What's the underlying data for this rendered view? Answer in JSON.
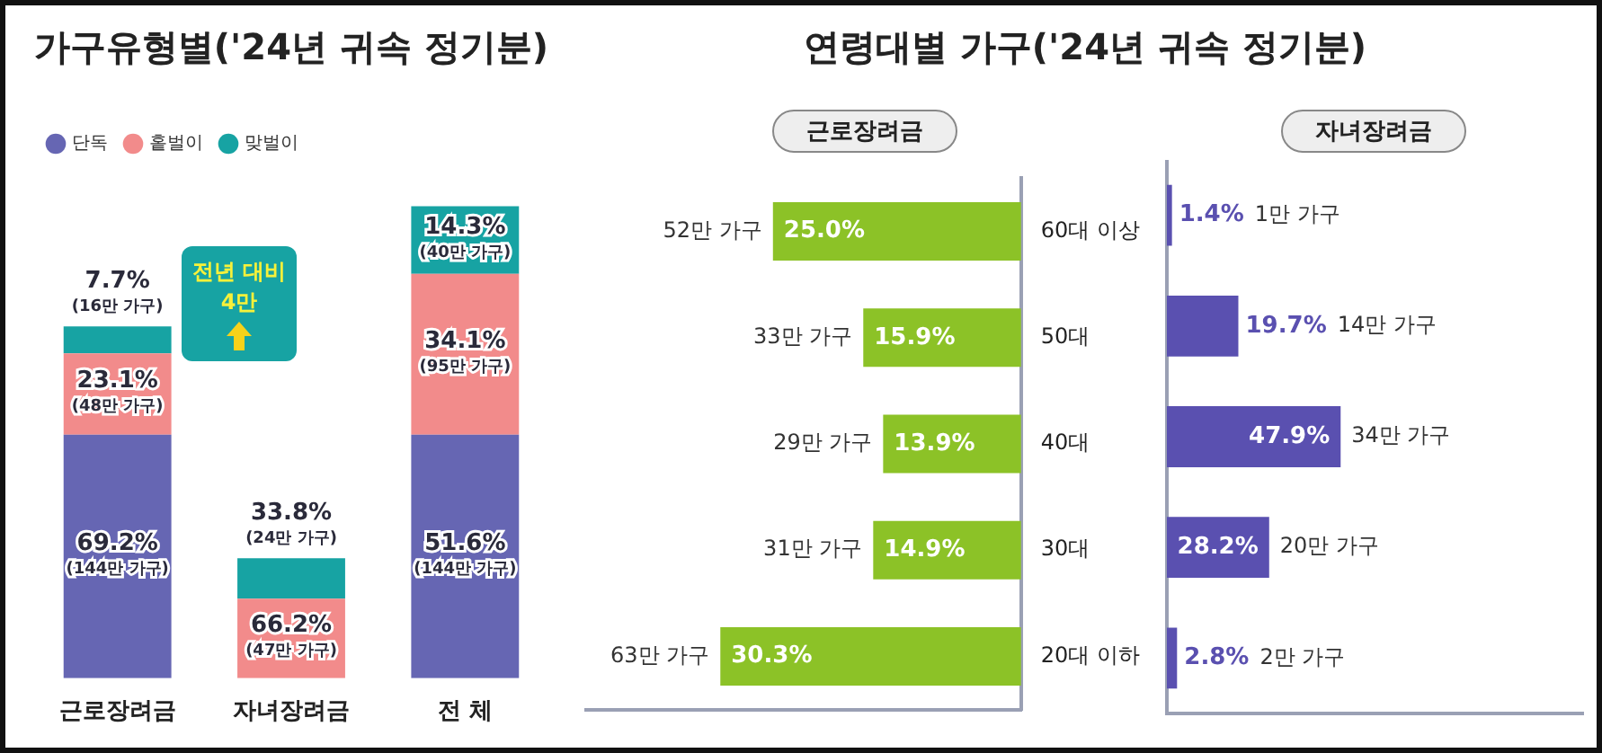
{
  "chart_data": [
    {
      "type": "bar",
      "title": "가구유형별('24년 귀속 정기분)",
      "categories": [
        "근로장려금",
        "자녀장려금",
        "전 체"
      ],
      "stacked": true,
      "legend": "top left",
      "tick_labels": "x",
      "annotations": [
        "전년 대비 4만"
      ],
      "series": [
        {
          "name": "단독",
          "color": "#6666b3",
          "values": [
            144,
            null,
            144
          ],
          "value_labels": [
            "69.2%\n(144만 가구)",
            null,
            "51.6%\n(144만 가구)"
          ]
        },
        {
          "name": "홑벌이",
          "color": "#f28b8b",
          "values": [
            48,
            47,
            95
          ],
          "value_labels": [
            "23.1%\n(48만 가구)",
            "66.2%\n(47만 가구)",
            "34.1%\n(95만 가구)"
          ]
        },
        {
          "name": "맞벌이",
          "color": "#17a3a3",
          "values": [
            16,
            24,
            40
          ],
          "value_labels": [
            "7.7%\n(16만 가구)",
            "33.8%\n(24만 가구)",
            "14.3%\n(40만 가구)"
          ]
        }
      ]
    },
    {
      "type": "bar",
      "title": "연령대별 가구('24년 귀속 정기분)",
      "subtitle": "근로장려금",
      "orientation": "horizontal",
      "categories": [
        "60대 이상",
        "50대",
        "40대",
        "30대",
        "20대 이하"
      ],
      "xlim": [
        44,
        0
      ],
      "tick_labels": "y",
      "series": [
        {
          "color": "#8cc227",
          "values": [
            25.0,
            15.9,
            13.9,
            14.9,
            30.3
          ],
          "value_labels": [
            "25.0%",
            "15.9%",
            "13.9%",
            "14.9%",
            "30.3%"
          ]
        }
      ],
      "annotations": [
        "52만 가구",
        "33만 가구",
        "29만 가구",
        "31만 가구",
        "63만 가구"
      ]
    },
    {
      "type": "bar",
      "subtitle": "자녀장려금",
      "orientation": "horizontal",
      "categories": [
        null,
        null,
        null,
        null,
        null
      ],
      "xlim": [
        0,
        115
      ],
      "tick_labels": false,
      "series": [
        {
          "color": "#5a50b0",
          "values": [
            1.4,
            19.7,
            47.9,
            28.2,
            2.8
          ],
          "value_labels": [
            "1.4%",
            "19.7%",
            "47.9%",
            "28.2%",
            "2.8%"
          ]
        }
      ],
      "annotations": [
        "1만 가구",
        "14만 가구",
        "34만 가구",
        "20만 가구",
        "2만 가구"
      ]
    }
  ]
}
